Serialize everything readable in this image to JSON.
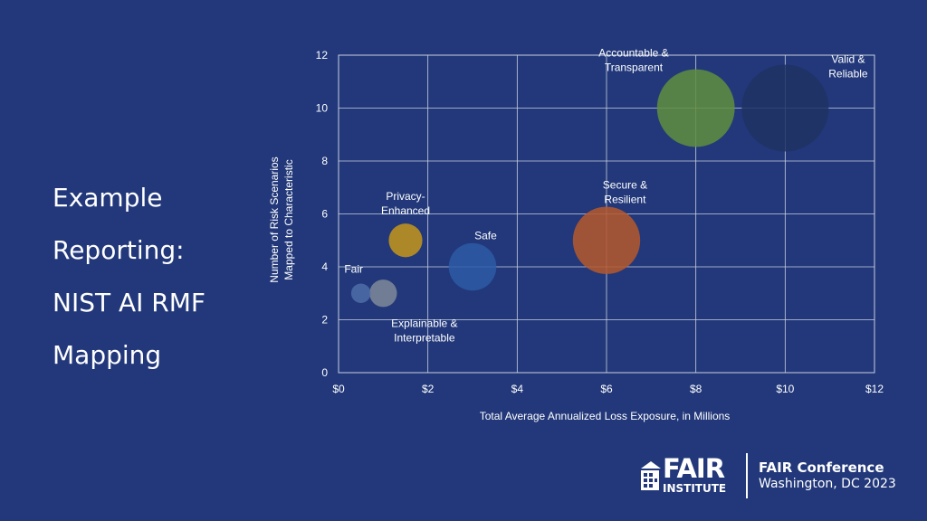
{
  "slide": {
    "title_lines": [
      "Example",
      "Reporting:",
      "NIST AI RMF",
      "Mapping"
    ]
  },
  "footer": {
    "logo_word": "FAIR",
    "logo_sub": "INSTITUTE",
    "conference_name": "FAIR Conference",
    "conference_location": "Washington, DC 2023"
  },
  "chart_data": {
    "type": "scatter",
    "variant": "bubble",
    "xlabel": "Total Average Annualized Loss Exposure, in Millions",
    "ylabel_lines": [
      "Number of Risk Scenarios",
      "Mapped to Characteristic"
    ],
    "xlim": [
      0,
      12
    ],
    "ylim": [
      0,
      12
    ],
    "x_ticks": [
      0,
      2,
      4,
      6,
      8,
      10,
      12
    ],
    "x_tick_labels": [
      "$0",
      "$2",
      "$4",
      "$6",
      "$8",
      "$10",
      "$12"
    ],
    "y_ticks": [
      0,
      2,
      4,
      6,
      8,
      10,
      12
    ],
    "y_tick_labels": [
      "0",
      "2",
      "4",
      "6",
      "8",
      "10",
      "12"
    ],
    "grid": true,
    "legend": "none",
    "bubble_size_basis": "proportional to x value",
    "points": [
      {
        "label_lines": [
          "Valid &",
          "Reliable"
        ],
        "x": 10,
        "y": 10,
        "size": 10,
        "color": "#1f3264",
        "label_pos": "top-right"
      },
      {
        "label_lines": [
          "Accountable &",
          "Transparent"
        ],
        "x": 8,
        "y": 10,
        "size": 8,
        "color": "#5f8e3e",
        "label_pos": "top-left"
      },
      {
        "label_lines": [
          "Secure &",
          "Resilient"
        ],
        "x": 6,
        "y": 5,
        "size": 6,
        "color": "#b5582c",
        "label_pos": "top-right"
      },
      {
        "label_lines": [
          "Safe"
        ],
        "x": 3,
        "y": 4,
        "size": 3,
        "color": "#2d5aa6",
        "label_pos": "top-right"
      },
      {
        "label_lines": [
          "Privacy-",
          "Enhanced"
        ],
        "x": 1.5,
        "y": 5,
        "size": 1.5,
        "color": "#c4961a",
        "label_pos": "top"
      },
      {
        "label_lines": [
          "Explainable &",
          "Interpretable"
        ],
        "x": 1,
        "y": 3,
        "size": 1,
        "color": "#7f8a99",
        "label_pos": "bottom-right"
      },
      {
        "label_lines": [
          "Fair"
        ],
        "x": 0.5,
        "y": 3,
        "size": 0.5,
        "color": "#4e6fa8",
        "label_pos": "top"
      }
    ]
  },
  "colors": {
    "background": "#22387a",
    "grid": "#c9cfe0",
    "text": "#ffffff"
  }
}
